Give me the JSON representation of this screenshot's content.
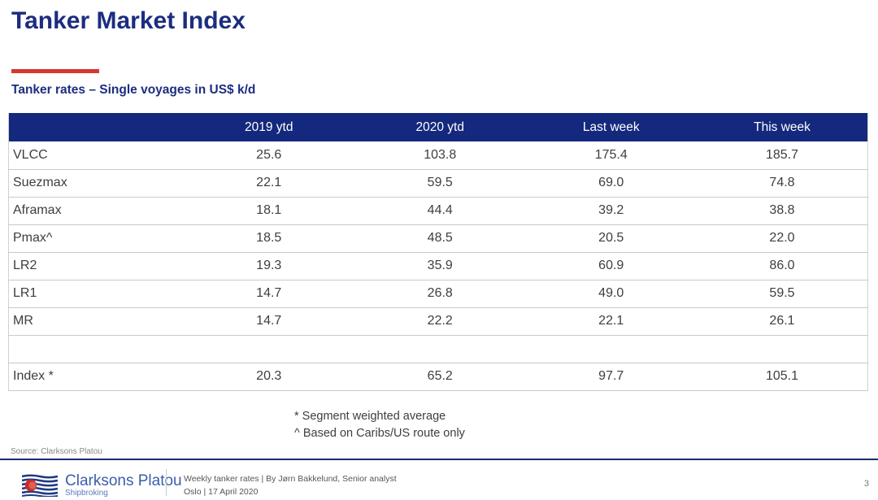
{
  "slide": {
    "title": "Tanker Market Index",
    "subtitle": "Tanker rates – Single voyages in US$ k/d",
    "page_number": "3"
  },
  "table": {
    "columns": [
      "",
      "2019 ytd",
      "2020 ytd",
      "Last week",
      "This week"
    ],
    "rows": [
      {
        "label": "VLCC",
        "values": [
          "25.6",
          "103.8",
          "175.4",
          "185.7"
        ]
      },
      {
        "label": "Suezmax",
        "values": [
          "22.1",
          "59.5",
          "69.0",
          "74.8"
        ]
      },
      {
        "label": "Aframax",
        "values": [
          "18.1",
          "44.4",
          "39.2",
          "38.8"
        ]
      },
      {
        "label": "Pmax^",
        "values": [
          "18.5",
          "48.5",
          "20.5",
          "22.0"
        ]
      },
      {
        "label": "LR2",
        "values": [
          "19.3",
          "35.9",
          "60.9",
          "86.0"
        ]
      },
      {
        "label": "LR1",
        "values": [
          "14.7",
          "26.8",
          "49.0",
          "59.5"
        ]
      },
      {
        "label": "MR",
        "values": [
          "14.7",
          "22.2",
          "22.1",
          "26.1"
        ]
      }
    ],
    "spacer_row": {
      "label": "",
      "values": [
        "",
        "",
        "",
        ""
      ]
    },
    "index_row": {
      "label": "Index *",
      "values": [
        "20.3",
        "65.2",
        "97.7",
        "105.1"
      ]
    }
  },
  "footnotes": [
    "* Segment weighted average",
    "^ Based on Caribs/US route only"
  ],
  "source": "Source: Clarksons Platou",
  "footer": {
    "logo_name": "Clarksons Platou",
    "logo_sub": "Shipbroking",
    "line1": "Weekly tanker rates | By Jørn Bakkelund, Senior analyst",
    "line2": "Oslo | 17 April 2020"
  },
  "colors": {
    "navy_header": "#14287d",
    "navy_title": "#1c2d80",
    "accent_red": "#d6382e",
    "logo_blue": "#3a5dae",
    "row_border": "#c9c9c9"
  }
}
